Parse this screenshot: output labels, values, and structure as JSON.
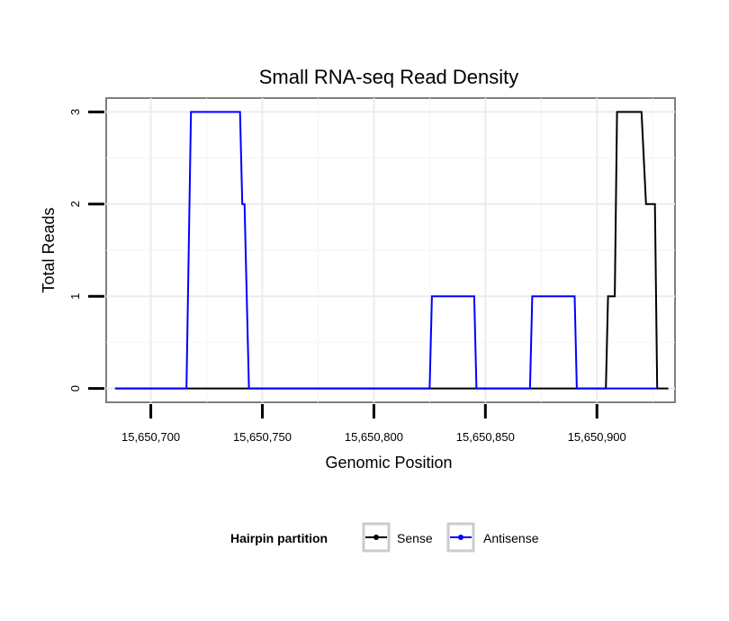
{
  "chart_data": {
    "type": "line",
    "title": "Small RNA-seq Read Density",
    "xlabel": "Genomic Position",
    "ylabel": "Total Reads",
    "xlim": [
      15650680,
      15650935
    ],
    "ylim": [
      -0.15,
      3.15
    ],
    "x_ticks": [
      15650700,
      15650750,
      15650800,
      15650850,
      15650900
    ],
    "x_tick_labels": [
      "15,650,700",
      "15,650,750",
      "15,650,800",
      "15,650,850",
      "15,650,900"
    ],
    "y_ticks": [
      0,
      1,
      2,
      3
    ],
    "y_tick_labels": [
      "0",
      "1",
      "2",
      "3"
    ],
    "grid": true,
    "legend": {
      "title": "Hairpin partition",
      "position": "bottom"
    },
    "series": [
      {
        "name": "Sense",
        "color": "#000000",
        "x": [
          15650684,
          15650904,
          15650905,
          15650907,
          15650908,
          15650909,
          15650920,
          15650922,
          15650926,
          15650927,
          15650932
        ],
        "y": [
          0,
          0,
          1,
          1,
          1,
          3,
          3,
          2,
          2,
          0,
          0
        ]
      },
      {
        "name": "Antisense",
        "color": "#0000ff",
        "x": [
          15650684,
          15650716,
          15650718,
          15650740,
          15650741,
          15650742,
          15650744,
          15650825,
          15650826,
          15650845,
          15650846,
          15650870,
          15650871,
          15650890,
          15650891,
          15650927
        ],
        "y": [
          0,
          0,
          3,
          3,
          2,
          2,
          0,
          0,
          1,
          1,
          0,
          0,
          1,
          1,
          0,
          0
        ]
      }
    ]
  }
}
